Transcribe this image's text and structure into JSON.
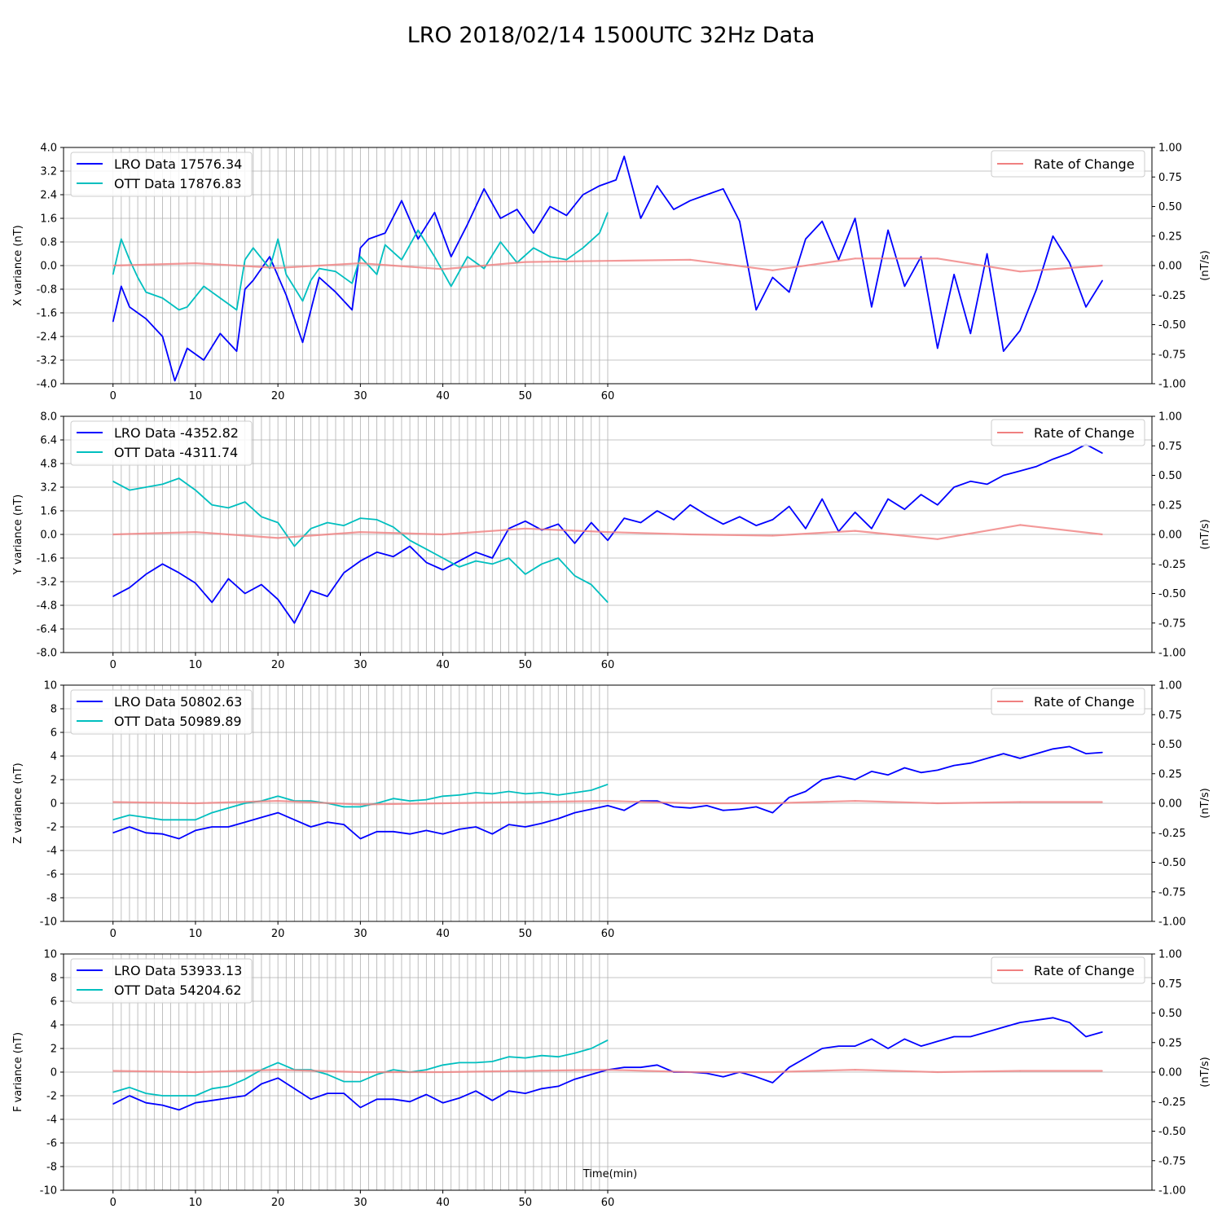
{
  "title": "LRO 2018/02/14 1500UTC 32Hz Data",
  "xlabel": "Time(min)",
  "colors": {
    "lro": "#0000ff",
    "ott": "#00bfbf",
    "rate": "#f08080",
    "marker": "#008000",
    "grid": "#b0b0b0"
  },
  "chart_data": [
    {
      "type": "line",
      "ylabel": "X variance (nT)",
      "y2label": "(nT/s)",
      "ylim": [
        -4,
        4
      ],
      "yticks": [
        "4.0",
        "3.2",
        "2.4",
        "1.6",
        "0.8",
        "0.0",
        "-0.8",
        "-1.6",
        "-2.4",
        "-3.2",
        "-4.0"
      ],
      "y2lim": [
        -1,
        1
      ],
      "y2ticks": [
        "1.00",
        "0.75",
        "0.50",
        "0.25",
        "0.00",
        "-0.25",
        "-0.50",
        "-0.75",
        "-1.00"
      ],
      "xticks": [
        "0",
        "10",
        "20",
        "30",
        "40",
        "50",
        "60"
      ],
      "xlim": [
        -6,
        126
      ],
      "grid": true,
      "legend": "top-left / top-right",
      "series": [
        {
          "name": "LRO Data 17576.34",
          "axis": "left",
          "x": [
            0,
            1,
            2,
            4,
            6,
            7.5,
            9,
            11,
            13,
            15,
            16,
            17,
            19,
            21,
            23,
            25,
            27,
            29,
            30,
            31,
            33,
            35,
            37,
            39,
            41,
            43,
            45,
            47,
            49,
            51,
            53,
            55,
            57,
            59,
            61,
            62,
            64,
            66,
            68,
            70,
            72,
            74,
            76,
            78,
            80,
            82,
            84,
            86,
            88,
            90,
            92,
            94,
            96,
            98,
            100,
            102,
            104,
            106,
            108,
            110,
            112,
            114,
            116,
            118,
            120
          ],
          "y": [
            -1.9,
            -0.7,
            -1.4,
            -1.8,
            -2.4,
            -3.9,
            -2.8,
            -3.2,
            -2.3,
            -2.9,
            -0.8,
            -0.5,
            0.3,
            -1.0,
            -2.6,
            -0.4,
            -0.9,
            -1.5,
            0.6,
            0.9,
            1.1,
            2.2,
            0.9,
            1.8,
            0.3,
            1.4,
            2.6,
            1.6,
            1.9,
            1.1,
            2.0,
            1.7,
            2.4,
            2.7,
            2.9,
            3.7,
            1.6,
            2.7,
            1.9,
            2.2,
            2.4,
            2.6,
            1.5,
            -1.5,
            -0.4,
            -0.9,
            0.9,
            1.5,
            0.2,
            1.6,
            -1.4,
            1.2,
            -0.7,
            0.3,
            -2.8,
            -0.3,
            -2.3,
            0.4,
            -2.9,
            -2.2,
            -0.8,
            1.0,
            0.1,
            -1.4,
            -0.5
          ]
        },
        {
          "name": "OTT Data 17876.83",
          "axis": "left",
          "x": [
            0,
            1,
            2,
            3,
            4,
            6,
            8,
            9,
            11,
            13,
            15,
            16,
            17,
            19,
            20,
            21,
            23,
            24,
            25,
            27,
            29,
            30,
            32,
            33,
            35,
            37,
            39,
            41,
            43,
            45,
            47,
            49,
            51,
            53,
            55,
            57,
            59,
            60
          ],
          "y": [
            -0.3,
            0.9,
            0.2,
            -0.4,
            -0.9,
            -1.1,
            -1.5,
            -1.4,
            -0.7,
            -1.1,
            -1.5,
            0.2,
            0.6,
            -0.1,
            0.9,
            -0.3,
            -1.2,
            -0.5,
            -0.1,
            -0.2,
            -0.6,
            0.3,
            -0.3,
            0.7,
            0.2,
            1.2,
            0.3,
            -0.7,
            0.3,
            -0.1,
            0.8,
            0.1,
            0.6,
            0.3,
            0.2,
            0.6,
            1.1,
            1.8
          ]
        },
        {
          "name": "Rate of Change",
          "axis": "right",
          "x": [
            0,
            10,
            20,
            30,
            40,
            50,
            60,
            70,
            80,
            90,
            100,
            110,
            120
          ],
          "y": [
            0.0,
            0.02,
            -0.02,
            0.02,
            -0.03,
            0.03,
            0.04,
            0.05,
            -0.04,
            0.06,
            0.06,
            -0.05,
            0.0
          ]
        }
      ]
    },
    {
      "type": "line",
      "ylabel": "Y variance (nT)",
      "y2label": "(nT/s)",
      "ylim": [
        -8,
        8
      ],
      "yticks": [
        "8.0",
        "6.4",
        "4.8",
        "3.2",
        "1.6",
        "0.0",
        "-1.6",
        "-3.2",
        "-4.8",
        "-6.4",
        "-8.0"
      ],
      "y2lim": [
        -1,
        1
      ],
      "y2ticks": [
        "1.00",
        "0.75",
        "0.50",
        "0.25",
        "0.00",
        "-0.25",
        "-0.50",
        "-0.75",
        "-1.00"
      ],
      "xticks": [
        "0",
        "10",
        "20",
        "30",
        "40",
        "50",
        "60"
      ],
      "xlim": [
        -6,
        126
      ],
      "grid": true,
      "legend": "top-left / top-right",
      "series": [
        {
          "name": "LRO Data -4352.82",
          "axis": "left",
          "x": [
            0,
            2,
            4,
            6,
            8,
            10,
            12,
            14,
            16,
            18,
            20,
            22,
            24,
            26,
            28,
            30,
            32,
            34,
            36,
            38,
            40,
            42,
            44,
            46,
            48,
            50,
            52,
            54,
            56,
            58,
            60,
            62,
            64,
            66,
            68,
            70,
            72,
            74,
            76,
            78,
            80,
            82,
            84,
            86,
            88,
            90,
            92,
            94,
            96,
            98,
            100,
            102,
            104,
            106,
            108,
            110,
            112,
            114,
            116,
            118,
            120
          ],
          "y": [
            -4.2,
            -3.6,
            -2.7,
            -2.0,
            -2.6,
            -3.3,
            -4.6,
            -3.0,
            -4.0,
            -3.4,
            -4.4,
            -6.0,
            -3.8,
            -4.2,
            -2.6,
            -1.8,
            -1.2,
            -1.5,
            -0.8,
            -1.9,
            -2.4,
            -1.8,
            -1.2,
            -1.6,
            0.4,
            0.9,
            0.3,
            0.7,
            -0.6,
            0.8,
            -0.4,
            1.1,
            0.8,
            1.6,
            1.0,
            2.0,
            1.3,
            0.7,
            1.2,
            0.6,
            1.0,
            1.9,
            0.4,
            2.4,
            0.2,
            1.5,
            0.4,
            2.4,
            1.7,
            2.7,
            2.0,
            3.2,
            3.6,
            3.4,
            4.0,
            4.3,
            4.6,
            5.1,
            5.5,
            6.1,
            5.5
          ]
        },
        {
          "name": "OTT Data -4311.74",
          "axis": "left",
          "x": [
            0,
            2,
            4,
            6,
            8,
            10,
            12,
            14,
            16,
            18,
            20,
            22,
            24,
            26,
            28,
            30,
            32,
            34,
            36,
            38,
            40,
            42,
            44,
            46,
            48,
            50,
            52,
            54,
            56,
            58,
            60
          ],
          "y": [
            3.6,
            3.0,
            3.2,
            3.4,
            3.8,
            3.0,
            2.0,
            1.8,
            2.2,
            1.2,
            0.8,
            -0.8,
            0.4,
            0.8,
            0.6,
            1.1,
            1.0,
            0.5,
            -0.4,
            -1.0,
            -1.6,
            -2.2,
            -1.8,
            -2.0,
            -1.6,
            -2.7,
            -2.0,
            -1.6,
            -2.8,
            -3.4,
            -4.6
          ]
        },
        {
          "name": "Rate of Change",
          "axis": "right",
          "x": [
            0,
            10,
            20,
            30,
            40,
            50,
            60,
            70,
            80,
            90,
            100,
            110,
            120
          ],
          "y": [
            0.0,
            0.02,
            -0.03,
            0.02,
            0.0,
            0.05,
            0.02,
            0.0,
            -0.01,
            0.03,
            -0.04,
            0.08,
            0.0
          ]
        }
      ]
    },
    {
      "type": "line",
      "ylabel": "Z variance (nT)",
      "y2label": "(nT/s)",
      "ylim": [
        -10,
        10
      ],
      "yticks": [
        "10",
        "8",
        "6",
        "4",
        "2",
        "0",
        "-2",
        "-4",
        "-6",
        "-8",
        "-10"
      ],
      "y2lim": [
        -1,
        1
      ],
      "y2ticks": [
        "1.00",
        "0.75",
        "0.50",
        "0.25",
        "0.00",
        "-0.25",
        "-0.50",
        "-0.75",
        "-1.00"
      ],
      "xticks": [
        "0",
        "10",
        "20",
        "30",
        "40",
        "50",
        "60"
      ],
      "xlim": [
        -6,
        126
      ],
      "grid": true,
      "legend": "top-left / top-right",
      "series": [
        {
          "name": "LRO Data 50802.63",
          "axis": "left",
          "x": [
            0,
            2,
            4,
            6,
            8,
            10,
            12,
            14,
            16,
            18,
            20,
            22,
            24,
            26,
            28,
            30,
            32,
            34,
            36,
            38,
            40,
            42,
            44,
            46,
            48,
            50,
            52,
            54,
            56,
            58,
            60,
            62,
            64,
            66,
            68,
            70,
            72,
            74,
            76,
            78,
            80,
            82,
            84,
            86,
            88,
            90,
            92,
            94,
            96,
            98,
            100,
            102,
            104,
            106,
            108,
            110,
            112,
            114,
            116,
            118,
            120
          ],
          "y": [
            -2.5,
            -2.0,
            -2.5,
            -2.6,
            -3.0,
            -2.3,
            -2.0,
            -2.0,
            -1.6,
            -1.2,
            -0.8,
            -1.4,
            -2.0,
            -1.6,
            -1.8,
            -3.0,
            -2.4,
            -2.4,
            -2.6,
            -2.3,
            -2.6,
            -2.2,
            -2.0,
            -2.6,
            -1.8,
            -2.0,
            -1.7,
            -1.3,
            -0.8,
            -0.5,
            -0.2,
            -0.6,
            0.2,
            0.2,
            -0.3,
            -0.4,
            -0.2,
            -0.6,
            -0.5,
            -0.3,
            -0.8,
            0.5,
            1.0,
            2.0,
            2.3,
            2.0,
            2.7,
            2.4,
            3.0,
            2.6,
            2.8,
            3.2,
            3.4,
            3.8,
            4.2,
            3.8,
            4.2,
            4.6,
            4.8,
            4.2,
            4.3
          ]
        },
        {
          "name": "OTT Data 50989.89",
          "axis": "left",
          "x": [
            0,
            2,
            4,
            6,
            8,
            10,
            12,
            14,
            16,
            18,
            20,
            22,
            24,
            26,
            28,
            30,
            32,
            34,
            36,
            38,
            40,
            42,
            44,
            46,
            48,
            50,
            52,
            54,
            56,
            58,
            60
          ],
          "y": [
            -1.4,
            -1.0,
            -1.2,
            -1.4,
            -1.4,
            -1.4,
            -0.8,
            -0.4,
            0.0,
            0.2,
            0.6,
            0.2,
            0.2,
            0.0,
            -0.3,
            -0.3,
            0.0,
            0.4,
            0.2,
            0.3,
            0.6,
            0.7,
            0.9,
            0.8,
            1.0,
            0.8,
            0.9,
            0.7,
            0.9,
            1.1,
            1.6
          ]
        },
        {
          "name": "Rate of Change",
          "axis": "right",
          "x": [
            0,
            10,
            20,
            30,
            40,
            50,
            60,
            70,
            80,
            90,
            100,
            110,
            120
          ],
          "y": [
            0.01,
            0.0,
            0.02,
            -0.01,
            0.0,
            0.01,
            0.02,
            0.0,
            0.0,
            0.02,
            0.0,
            0.01,
            0.01
          ]
        }
      ]
    },
    {
      "type": "line",
      "ylabel": "F variance (nT)",
      "y2label": "(nT/s)",
      "ylim": [
        -10,
        10
      ],
      "yticks": [
        "10",
        "8",
        "6",
        "4",
        "2",
        "0",
        "-2",
        "-4",
        "-6",
        "-8",
        "-10"
      ],
      "y2lim": [
        -1,
        1
      ],
      "y2ticks": [
        "1.00",
        "0.75",
        "0.50",
        "0.25",
        "0.00",
        "-0.25",
        "-0.50",
        "-0.75",
        "-1.00"
      ],
      "xticks": [
        "0",
        "10",
        "20",
        "30",
        "40",
        "50",
        "60"
      ],
      "xlim": [
        -6,
        126
      ],
      "grid": true,
      "legend": "top-left / top-right",
      "series": [
        {
          "name": "LRO Data 53933.13",
          "axis": "left",
          "x": [
            0,
            2,
            4,
            6,
            8,
            10,
            12,
            14,
            16,
            18,
            20,
            22,
            24,
            26,
            28,
            30,
            32,
            34,
            36,
            38,
            40,
            42,
            44,
            46,
            48,
            50,
            52,
            54,
            56,
            58,
            60,
            62,
            64,
            66,
            68,
            70,
            72,
            74,
            76,
            78,
            80,
            82,
            84,
            86,
            88,
            90,
            92,
            94,
            96,
            98,
            100,
            102,
            104,
            106,
            108,
            110,
            112,
            114,
            116,
            118,
            120
          ],
          "y": [
            -2.7,
            -2.0,
            -2.6,
            -2.8,
            -3.2,
            -2.6,
            -2.4,
            -2.2,
            -2.0,
            -1.0,
            -0.5,
            -1.4,
            -2.3,
            -1.8,
            -1.8,
            -3.0,
            -2.3,
            -2.3,
            -2.5,
            -1.9,
            -2.6,
            -2.2,
            -1.6,
            -2.4,
            -1.6,
            -1.8,
            -1.4,
            -1.2,
            -0.6,
            -0.2,
            0.2,
            0.4,
            0.4,
            0.6,
            0.0,
            0.0,
            -0.1,
            -0.4,
            0.0,
            -0.4,
            -0.9,
            0.4,
            1.2,
            2.0,
            2.2,
            2.2,
            2.8,
            2.0,
            2.8,
            2.2,
            2.6,
            3.0,
            3.0,
            3.4,
            3.8,
            4.2,
            4.4,
            4.6,
            4.2,
            3.0,
            3.4
          ]
        },
        {
          "name": "OTT Data 54204.62",
          "axis": "left",
          "x": [
            0,
            2,
            4,
            6,
            8,
            10,
            12,
            14,
            16,
            18,
            20,
            22,
            24,
            26,
            28,
            30,
            32,
            34,
            36,
            38,
            40,
            42,
            44,
            46,
            48,
            50,
            52,
            54,
            56,
            58,
            60
          ],
          "y": [
            -1.7,
            -1.3,
            -1.8,
            -2.0,
            -2.0,
            -2.0,
            -1.4,
            -1.2,
            -0.6,
            0.2,
            0.8,
            0.2,
            0.2,
            -0.2,
            -0.8,
            -0.8,
            -0.2,
            0.2,
            0.0,
            0.2,
            0.6,
            0.8,
            0.8,
            0.9,
            1.3,
            1.2,
            1.4,
            1.3,
            1.6,
            2.0,
            2.7
          ]
        },
        {
          "name": "Rate of Change",
          "axis": "right",
          "x": [
            0,
            10,
            20,
            30,
            40,
            50,
            60,
            70,
            80,
            90,
            100,
            110,
            120
          ],
          "y": [
            0.01,
            0.0,
            0.02,
            0.0,
            0.0,
            0.01,
            0.02,
            0.0,
            0.0,
            0.02,
            0.0,
            0.01,
            0.01
          ]
        }
      ]
    }
  ]
}
